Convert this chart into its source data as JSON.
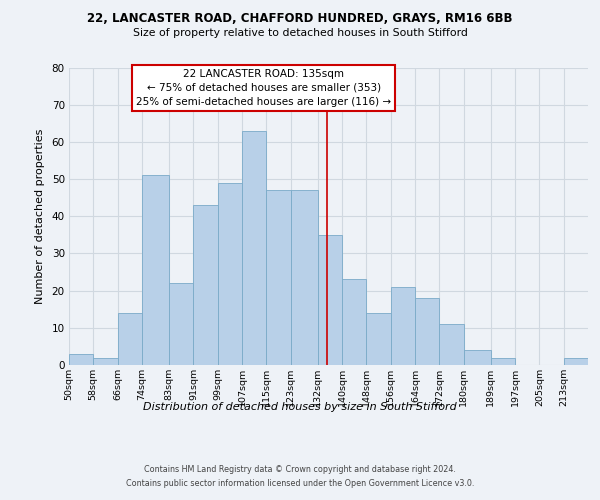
{
  "title_line1": "22, LANCASTER ROAD, CHAFFORD HUNDRED, GRAYS, RM16 6BB",
  "title_line2": "Size of property relative to detached houses in South Stifford",
  "xlabel": "Distribution of detached houses by size in South Stifford",
  "ylabel": "Number of detached properties",
  "bin_labels": [
    "50sqm",
    "58sqm",
    "66sqm",
    "74sqm",
    "83sqm",
    "91sqm",
    "99sqm",
    "107sqm",
    "115sqm",
    "123sqm",
    "132sqm",
    "140sqm",
    "148sqm",
    "156sqm",
    "164sqm",
    "172sqm",
    "180sqm",
    "189sqm",
    "197sqm",
    "205sqm",
    "213sqm"
  ],
  "bin_edges": [
    50,
    58,
    66,
    74,
    83,
    91,
    99,
    107,
    115,
    123,
    132,
    140,
    148,
    156,
    164,
    172,
    180,
    189,
    197,
    205,
    213,
    221
  ],
  "counts": [
    3,
    2,
    14,
    51,
    22,
    43,
    49,
    63,
    47,
    47,
    35,
    23,
    14,
    21,
    18,
    11,
    4,
    2,
    0,
    0,
    2
  ],
  "bar_color": "#b8d0e8",
  "bar_edge_color": "#7aaac8",
  "grid_color": "#d0d8e0",
  "vline_x": 135,
  "vline_color": "#cc0000",
  "box_text_line1": "22 LANCASTER ROAD: 135sqm",
  "box_text_line2": "← 75% of detached houses are smaller (353)",
  "box_text_line3": "25% of semi-detached houses are larger (116) →",
  "box_color": "white",
  "box_edge_color": "#cc0000",
  "ylim": [
    0,
    80
  ],
  "yticks": [
    0,
    10,
    20,
    30,
    40,
    50,
    60,
    70,
    80
  ],
  "footer_line1": "Contains HM Land Registry data © Crown copyright and database right 2024.",
  "footer_line2": "Contains public sector information licensed under the Open Government Licence v3.0.",
  "bg_color": "#eef2f7"
}
